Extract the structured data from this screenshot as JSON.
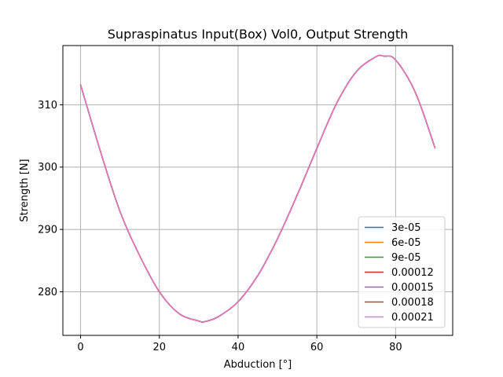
{
  "chart_data": {
    "type": "line",
    "title": "Supraspinatus Input(Box) Vol0, Output Strength",
    "xlabel": "Abduction [°]",
    "ylabel": "Strength [N]",
    "xlim": [
      -4.5,
      94.5
    ],
    "ylim": [
      273,
      319.5
    ],
    "xticks": [
      0,
      20,
      40,
      60,
      80
    ],
    "yticks": [
      280,
      290,
      300,
      310
    ],
    "grid": true,
    "legend_position": "lower right",
    "x": [
      0,
      5,
      10,
      15,
      20,
      25,
      30,
      31.5,
      35,
      40,
      45,
      50,
      55,
      60,
      65,
      70,
      75,
      77,
      80,
      85,
      90
    ],
    "series": [
      {
        "name": "3e-05",
        "color": "#1f77b4",
        "values": [
          313.2,
          302.6,
          292.9,
          285.8,
          280.0,
          276.5,
          275.3,
          275.2,
          276.0,
          278.4,
          282.6,
          288.5,
          295.5,
          303.0,
          310.2,
          315.3,
          317.7,
          317.8,
          317.2,
          312.0,
          303.1
        ]
      },
      {
        "name": "6e-05",
        "color": "#ff7f0e",
        "values": [
          313.2,
          302.6,
          292.9,
          285.8,
          280.0,
          276.5,
          275.3,
          275.2,
          276.0,
          278.4,
          282.6,
          288.5,
          295.5,
          303.0,
          310.2,
          315.3,
          317.7,
          317.8,
          317.2,
          312.0,
          303.1
        ]
      },
      {
        "name": "9e-05",
        "color": "#2ca02c",
        "values": [
          313.2,
          302.6,
          292.9,
          285.8,
          280.0,
          276.5,
          275.3,
          275.2,
          276.0,
          278.4,
          282.6,
          288.5,
          295.5,
          303.0,
          310.2,
          315.3,
          317.7,
          317.8,
          317.2,
          312.0,
          303.1
        ]
      },
      {
        "name": "0.00012",
        "color": "#d62728",
        "values": [
          313.2,
          302.6,
          292.9,
          285.8,
          280.0,
          276.5,
          275.3,
          275.2,
          276.0,
          278.4,
          282.6,
          288.5,
          295.5,
          303.0,
          310.2,
          315.3,
          317.7,
          317.8,
          317.2,
          312.0,
          303.1
        ]
      },
      {
        "name": "0.00015",
        "color": "#9467bd",
        "values": [
          313.2,
          302.6,
          292.9,
          285.8,
          280.0,
          276.5,
          275.3,
          275.2,
          276.0,
          278.4,
          282.6,
          288.5,
          295.5,
          303.0,
          310.2,
          315.3,
          317.7,
          317.8,
          317.2,
          312.0,
          303.1
        ]
      },
      {
        "name": "0.00018",
        "color": "#8c564b",
        "values": [
          313.2,
          302.6,
          292.9,
          285.8,
          280.0,
          276.5,
          275.3,
          275.2,
          276.0,
          278.4,
          282.6,
          288.5,
          295.5,
          303.0,
          310.2,
          315.3,
          317.7,
          317.8,
          317.2,
          312.0,
          303.1
        ]
      },
      {
        "name": "0.00021",
        "color": "#e377c2",
        "values": [
          313.2,
          302.6,
          292.9,
          285.8,
          280.0,
          276.5,
          275.3,
          275.2,
          276.0,
          278.4,
          282.6,
          288.5,
          295.5,
          303.0,
          310.2,
          315.3,
          317.7,
          317.8,
          317.2,
          312.0,
          303.1
        ]
      }
    ]
  }
}
